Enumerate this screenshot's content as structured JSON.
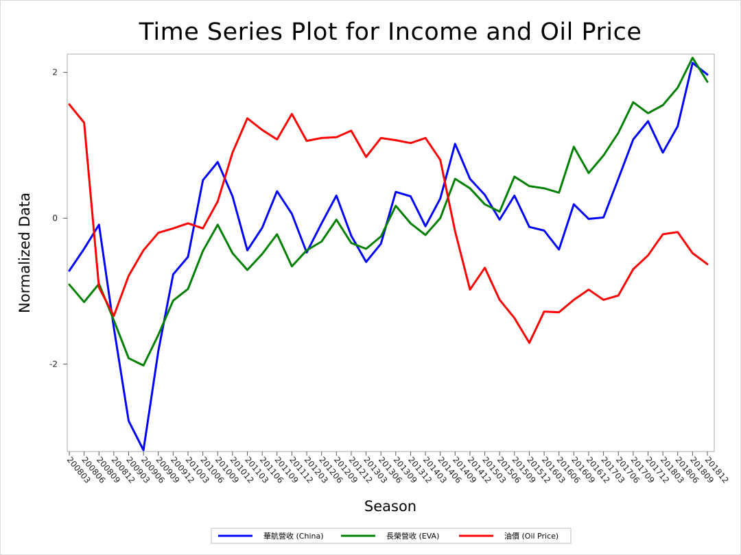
{
  "chart_data": {
    "type": "line",
    "title": "Time Series Plot for Income and Oil Price",
    "xlabel": "Season",
    "ylabel": "Normalized Data",
    "x": [
      "200803",
      "200806",
      "200809",
      "200812",
      "200903",
      "200906",
      "200909",
      "200912",
      "201003",
      "201006",
      "201009",
      "201012",
      "201103",
      "201106",
      "201109",
      "201112",
      "201203",
      "201206",
      "201209",
      "201212",
      "201303",
      "201306",
      "201309",
      "201312",
      "201403",
      "201406",
      "201409",
      "201412",
      "201503",
      "201506",
      "201509",
      "201512",
      "201603",
      "201606",
      "201609",
      "201612",
      "201703",
      "201706",
      "201709",
      "201712",
      "201803",
      "201806",
      "201809",
      "201812"
    ],
    "yticks": [
      "2",
      "0",
      "-2"
    ],
    "ylim": [
      -3.2,
      2.25
    ],
    "grid": false,
    "legend_position": "bottom",
    "series": [
      {
        "name": "華航營收 (China)",
        "color": "#0000ff",
        "values": [
          -0.72,
          -0.42,
          -0.09,
          -1.5,
          -2.78,
          -3.18,
          -1.82,
          -0.77,
          -0.53,
          0.52,
          0.77,
          0.3,
          -0.44,
          -0.13,
          0.37,
          0.06,
          -0.47,
          -0.07,
          0.31,
          -0.24,
          -0.6,
          -0.35,
          0.36,
          0.3,
          -0.11,
          0.27,
          1.02,
          0.54,
          0.32,
          -0.02,
          0.31,
          -0.12,
          -0.17,
          -0.43,
          0.19,
          -0.01,
          0.01,
          0.54,
          1.08,
          1.33,
          0.9,
          1.26,
          2.13,
          1.97
        ]
      },
      {
        "name": "長榮營收 (EVA)",
        "color": "#008000",
        "values": [
          -0.91,
          -1.15,
          -0.9,
          -1.4,
          -1.92,
          -2.02,
          -1.6,
          -1.13,
          -0.97,
          -0.45,
          -0.09,
          -0.48,
          -0.71,
          -0.49,
          -0.22,
          -0.66,
          -0.44,
          -0.32,
          -0.02,
          -0.34,
          -0.42,
          -0.25,
          0.17,
          -0.07,
          -0.23,
          0.0,
          0.54,
          0.41,
          0.19,
          0.09,
          0.57,
          0.44,
          0.41,
          0.35,
          0.98,
          0.62,
          0.86,
          1.17,
          1.59,
          1.44,
          1.55,
          1.79,
          2.2,
          1.87
        ]
      },
      {
        "name": "油價 (Oil Price)",
        "color": "#ff0000",
        "values": [
          1.56,
          1.31,
          -0.95,
          -1.34,
          -0.79,
          -0.44,
          -0.2,
          -0.14,
          -0.07,
          -0.14,
          0.23,
          0.9,
          1.37,
          1.21,
          1.08,
          1.43,
          1.06,
          1.1,
          1.11,
          1.2,
          0.84,
          1.1,
          1.07,
          1.03,
          1.1,
          0.8,
          -0.18,
          -0.98,
          -0.68,
          -1.12,
          -1.37,
          -1.71,
          -1.28,
          -1.29,
          -1.12,
          -0.98,
          -1.12,
          -1.06,
          -0.7,
          -0.51,
          -0.22,
          -0.19,
          -0.48,
          -0.63
        ]
      }
    ]
  }
}
